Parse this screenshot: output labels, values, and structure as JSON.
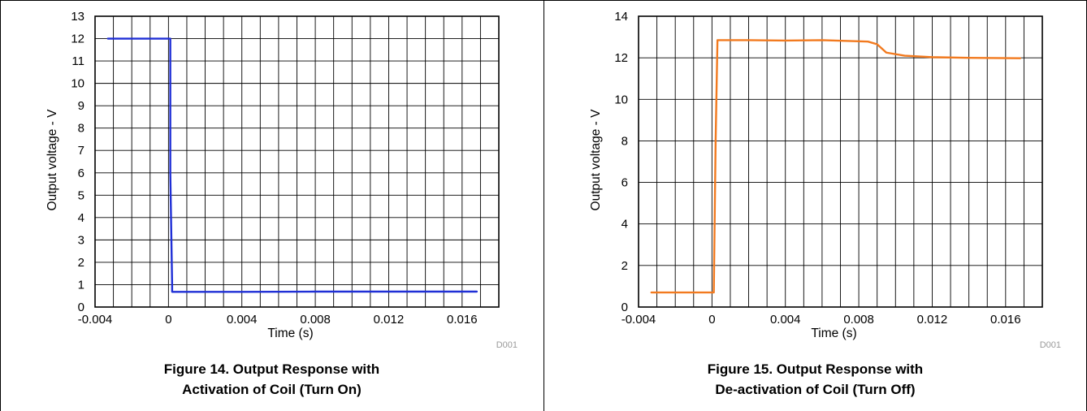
{
  "chart_data": [
    {
      "type": "line",
      "xlabel": "Time (s)",
      "ylabel": "Output voltage - V",
      "xlim": [
        -0.004,
        0.018
      ],
      "ylim": [
        0,
        13
      ],
      "x_ticks": [
        "-0.004",
        "0",
        "0.004",
        "0.008",
        "0.012",
        "0.016"
      ],
      "y_ticks": [
        "0",
        "1",
        "2",
        "3",
        "4",
        "5",
        "6",
        "7",
        "8",
        "9",
        "10",
        "11",
        "12",
        "13"
      ],
      "grid": true,
      "series": [
        {
          "color": "#1f2fd6",
          "x": [
            -0.0033,
            0.0001,
            0.0001,
            0.0002,
            0.0002,
            0.004,
            0.008,
            0.012,
            0.0168
          ],
          "y": [
            12.0,
            12.0,
            6.0,
            1.0,
            0.68,
            0.68,
            0.69,
            0.69,
            0.69
          ]
        }
      ],
      "code": "D001",
      "caption": [
        "Figure 14. Output Response with",
        "Activation of Coil (Turn On)"
      ]
    },
    {
      "type": "line",
      "xlabel": "Time (s)",
      "ylabel": "Output voltage - V",
      "xlim": [
        -0.004,
        0.018
      ],
      "ylim": [
        0,
        14
      ],
      "x_ticks": [
        "-0.004",
        "0",
        "0.004",
        "0.008",
        "0.012",
        "0.016"
      ],
      "y_ticks": [
        "0",
        "2",
        "4",
        "6",
        "8",
        "10",
        "12",
        "14"
      ],
      "grid": true,
      "series": [
        {
          "color": "#f27a1f",
          "x": [
            -0.0033,
            0.0001,
            0.0002,
            0.0003,
            0.002,
            0.004,
            0.006,
            0.0085,
            0.009,
            0.0095,
            0.0105,
            0.012,
            0.014,
            0.0168
          ],
          "y": [
            0.7,
            0.7,
            8.0,
            12.85,
            12.85,
            12.83,
            12.85,
            12.78,
            12.65,
            12.25,
            12.1,
            12.03,
            12.0,
            11.98
          ]
        }
      ],
      "code": "D001",
      "caption": [
        "Figure 15. Output Response with",
        "De-activation of Coil (Turn Off)"
      ]
    }
  ]
}
